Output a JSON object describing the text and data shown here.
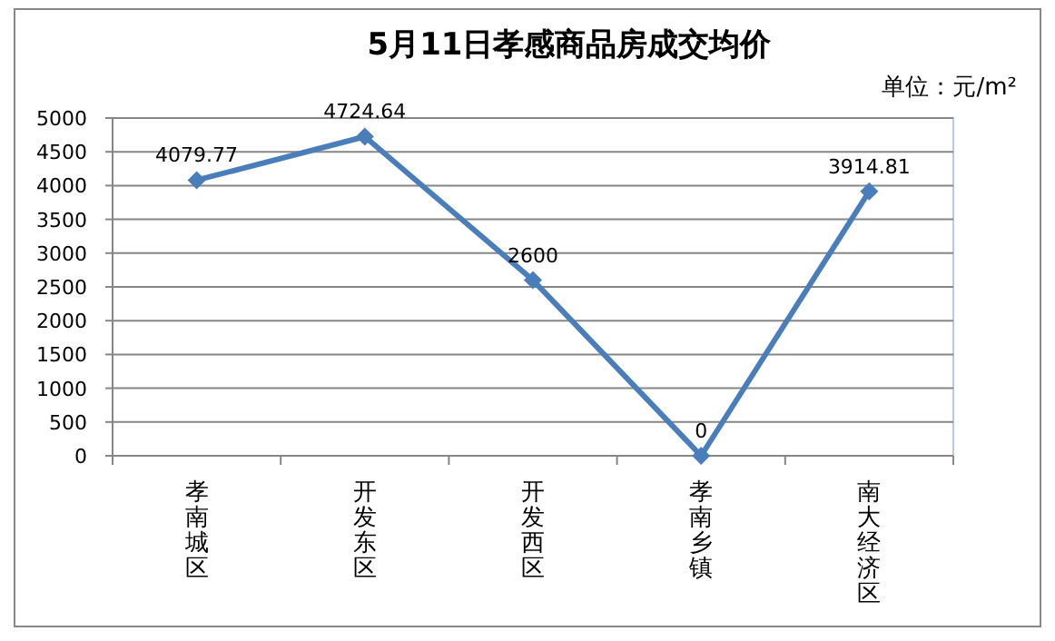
{
  "chart_data": {
    "type": "line",
    "title": "5月11日孝感商品房成交均价",
    "annotations": [
      "单位：元/m²"
    ],
    "categories": [
      "孝南城区",
      "开发东区",
      "开发西区",
      "孝南乡镇",
      "南大经济区"
    ],
    "series": [
      {
        "color": "#4a7ebb",
        "values": [
          4079.77,
          4724.64,
          2600,
          0,
          3914.81
        ]
      }
    ],
    "ylim": [
      0,
      5000
    ],
    "yticks": [
      0,
      500,
      1000,
      1500,
      2000,
      2500,
      3000,
      3500,
      4000,
      4500,
      5000
    ],
    "grid": "y",
    "marker": "diamond",
    "line_style": "solid",
    "data_labels": true
  }
}
